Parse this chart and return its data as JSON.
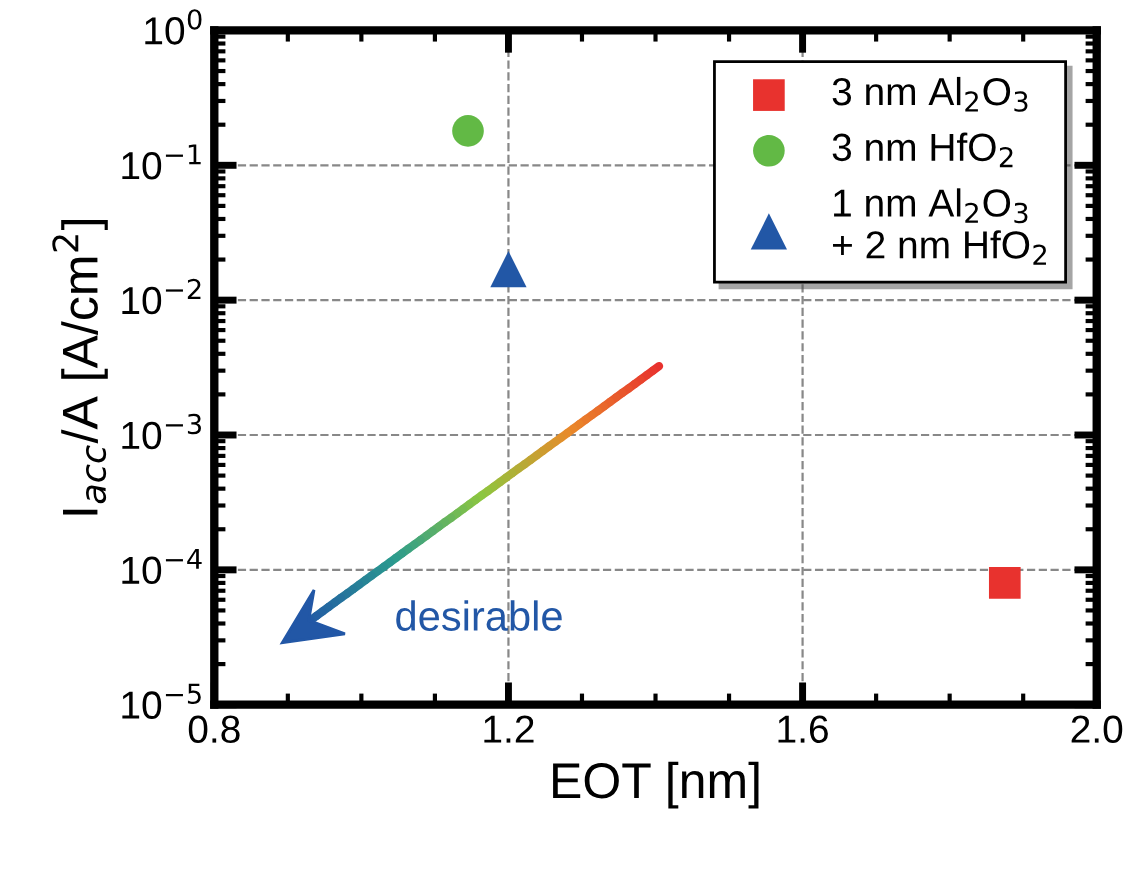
{
  "chart_data": {
    "type": "scatter",
    "xlabel": "EOT [nm]",
    "ylabel": "I$_{acc}$/A [A/cm$^{2}$]",
    "log": "y",
    "xlim": [
      0.8,
      2.0
    ],
    "xticks": [
      {
        "value": 0.8,
        "label": "0.8"
      },
      {
        "value": 1.2,
        "label": "1.2"
      },
      {
        "value": 1.6,
        "label": "1.6"
      },
      {
        "value": 2.0,
        "label": "2.0"
      }
    ],
    "ylim": [
      1e-05,
      1
    ],
    "yticks": [
      {
        "value": 1e-05,
        "label": "10$^{−5}$"
      },
      {
        "value": 0.0001,
        "label": "10$^{−4}$"
      },
      {
        "value": 0.001,
        "label": "10$^{−3}$"
      },
      {
        "value": 0.01,
        "label": "10$^{−2}$"
      },
      {
        "value": 0.1,
        "label": "10$^{−1}$"
      },
      {
        "value": 1,
        "label": "10$^{0}$"
      }
    ],
    "grid": true,
    "legend": "top right",
    "series": [
      {
        "name": "3 nm Al$_{2}$O$_{3}$",
        "color": "#e8322e",
        "marker": "square",
        "x": [
          1.875
        ],
        "values": [
          8e-05
        ]
      },
      {
        "name": "3 nm HfO$_{2}$",
        "color": "#62b945",
        "marker": "circle",
        "x": [
          1.145
        ],
        "values": [
          0.18
        ]
      },
      {
        "name": "1 nm Al$_{2}$O$_{3}$\n+ 2 nm HfO$_{2}$",
        "color": "#2257a6",
        "marker": "triangle",
        "x": [
          1.2
        ],
        "values": [
          0.017
        ]
      }
    ],
    "annotations": [
      "desirable"
    ]
  }
}
